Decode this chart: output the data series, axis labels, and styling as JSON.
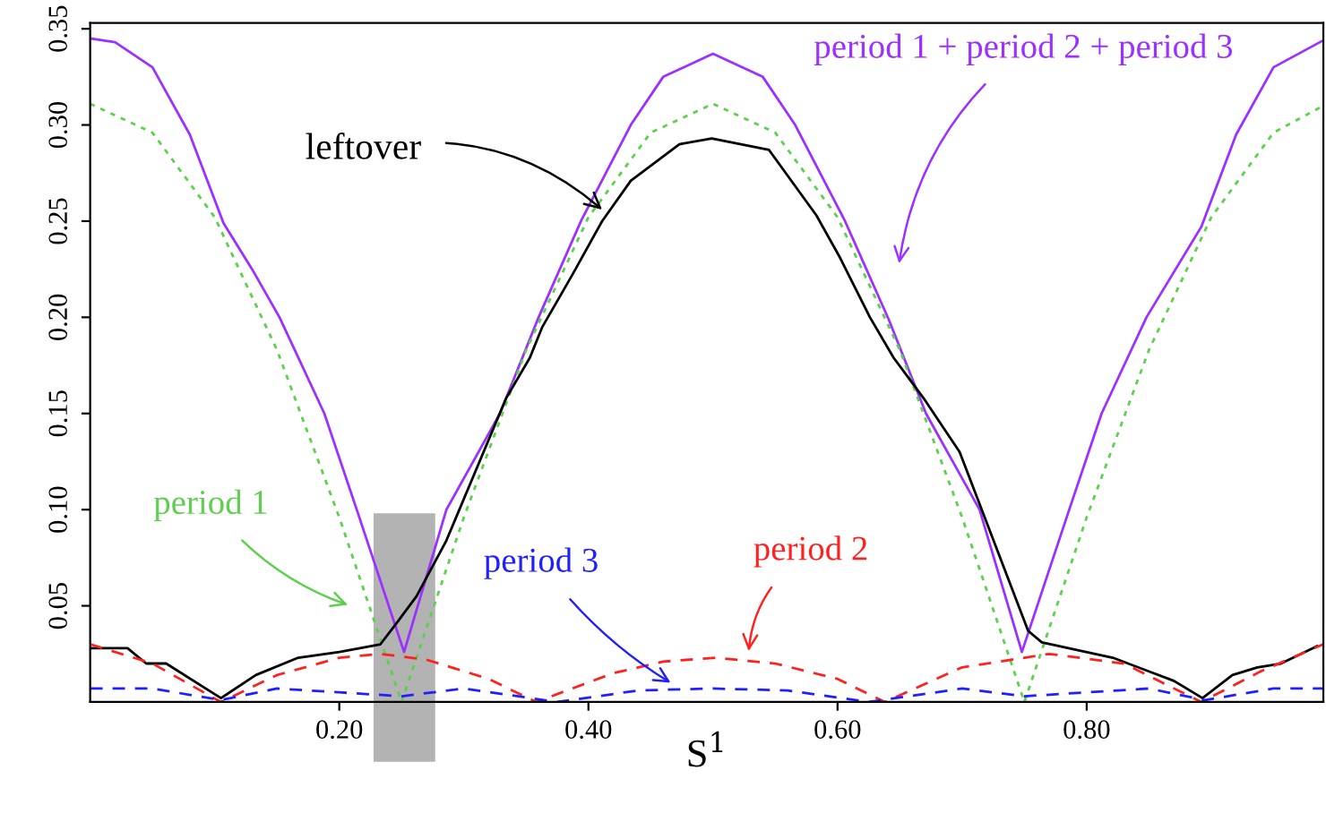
{
  "chart_data": {
    "type": "line",
    "xlabel": "S$^{1}$",
    "xlim": [
      0,
      0.99
    ],
    "ylim": [
      0,
      0.353
    ],
    "xticks": [
      {
        "value": 0.2,
        "label": "0.20"
      },
      {
        "value": 0.4,
        "label": "0.40"
      },
      {
        "value": 0.6,
        "label": "0.60"
      },
      {
        "value": 0.8,
        "label": "0.80"
      }
    ],
    "yticks": [
      {
        "value": 0.05,
        "label": "0.05"
      },
      {
        "value": 0.1,
        "label": "0.10"
      },
      {
        "value": 0.15,
        "label": "0.15"
      },
      {
        "value": 0.2,
        "label": "0.20"
      },
      {
        "value": 0.25,
        "label": "0.25"
      },
      {
        "value": 0.3,
        "label": "0.30"
      },
      {
        "value": 0.35,
        "label": "0.35"
      }
    ],
    "grid": false,
    "legend": false,
    "series": [
      {
        "color": "#9b30ff",
        "line_style": "solid",
        "x": [
          0,
          0.02,
          0.05,
          0.08,
          0.107,
          0.13,
          0.152,
          0.188,
          0.214,
          0.252,
          0.286,
          0.329,
          0.36,
          0.394,
          0.434,
          0.46,
          0.5,
          0.54,
          0.566,
          0.606,
          0.641,
          0.671,
          0.714,
          0.748,
          0.786,
          0.812,
          0.848,
          0.892,
          0.92,
          0.95,
          0.99
        ],
        "values": [
          0.345,
          0.343,
          0.33,
          0.295,
          0.249,
          0.225,
          0.2,
          0.15,
          0.1,
          0.026,
          0.1,
          0.15,
          0.2,
          0.25,
          0.3,
          0.325,
          0.337,
          0.325,
          0.3,
          0.25,
          0.199,
          0.15,
          0.1,
          0.026,
          0.1,
          0.15,
          0.2,
          0.247,
          0.295,
          0.33,
          0.344
        ]
      },
      {
        "color": "#5fcf4f",
        "line_style": "dotted",
        "x": [
          0,
          0.05,
          0.1,
          0.15,
          0.2,
          0.25,
          0.3,
          0.35,
          0.4,
          0.45,
          0.5,
          0.55,
          0.6,
          0.65,
          0.7,
          0.75,
          0.8,
          0.85,
          0.9,
          0.95,
          0.99
        ],
        "values": [
          0.311,
          0.296,
          0.252,
          0.183,
          0.096,
          0.0,
          0.096,
          0.183,
          0.252,
          0.296,
          0.311,
          0.296,
          0.252,
          0.183,
          0.096,
          0.0,
          0.096,
          0.183,
          0.252,
          0.296,
          0.31
        ]
      },
      {
        "color": "#000000",
        "line_style": "solid",
        "x": [
          0,
          0.03,
          0.045,
          0.061,
          0.105,
          0.133,
          0.167,
          0.2,
          0.233,
          0.246,
          0.262,
          0.286,
          0.334,
          0.353,
          0.363,
          0.387,
          0.411,
          0.434,
          0.473,
          0.499,
          0.545,
          0.583,
          0.602,
          0.626,
          0.645,
          0.669,
          0.698,
          0.727,
          0.753,
          0.764,
          0.821,
          0.87,
          0.893,
          0.917,
          0.937,
          0.956,
          0.985
        ],
        "values": [
          0.028,
          0.028,
          0.02,
          0.02,
          0.002,
          0.014,
          0.023,
          0.026,
          0.03,
          0.041,
          0.055,
          0.084,
          0.158,
          0.179,
          0.195,
          0.222,
          0.25,
          0.271,
          0.29,
          0.293,
          0.287,
          0.253,
          0.231,
          0.2,
          0.179,
          0.158,
          0.13,
          0.081,
          0.037,
          0.031,
          0.023,
          0.011,
          0.002,
          0.014,
          0.018,
          0.02,
          0.029
        ]
      },
      {
        "color": "#ff2020",
        "line_style": "dashed",
        "x": [
          0,
          0.05,
          0.105,
          0.15,
          0.2,
          0.233,
          0.27,
          0.32,
          0.358,
          0.42,
          0.46,
          0.502,
          0.55,
          0.6,
          0.638,
          0.7,
          0.77,
          0.83,
          0.892,
          0.94,
          0.99
        ],
        "values": [
          0.03,
          0.02,
          0.0,
          0.014,
          0.023,
          0.025,
          0.022,
          0.012,
          0.0,
          0.015,
          0.021,
          0.023,
          0.02,
          0.012,
          0.0,
          0.018,
          0.025,
          0.02,
          0.0,
          0.016,
          0.03
        ]
      },
      {
        "color": "#2020ff",
        "line_style": "dashed",
        "x": [
          0,
          0.05,
          0.105,
          0.15,
          0.2,
          0.25,
          0.3,
          0.375,
          0.44,
          0.5,
          0.56,
          0.625,
          0.7,
          0.75,
          0.8,
          0.85,
          0.895,
          0.95,
          0.99
        ],
        "values": [
          0.007,
          0.007,
          0.001,
          0.007,
          0.005,
          0.003,
          0.007,
          0.0,
          0.006,
          0.007,
          0.006,
          0.0,
          0.007,
          0.003,
          0.005,
          0.007,
          0.001,
          0.007,
          0.007
        ]
      }
    ],
    "bands": [
      {
        "axis": "x",
        "from": 0.2275,
        "to": 0.277,
        "color": "#b3b3b3"
      }
    ],
    "annotations": [
      {
        "text": "leftover",
        "x": 0.411,
        "y": 0.256
      },
      "period 1 + period 2 + period 3",
      "period 1",
      {
        "text": "period 3",
        "x": 0.466,
        "y": 0.01
      },
      "period 2"
    ]
  }
}
